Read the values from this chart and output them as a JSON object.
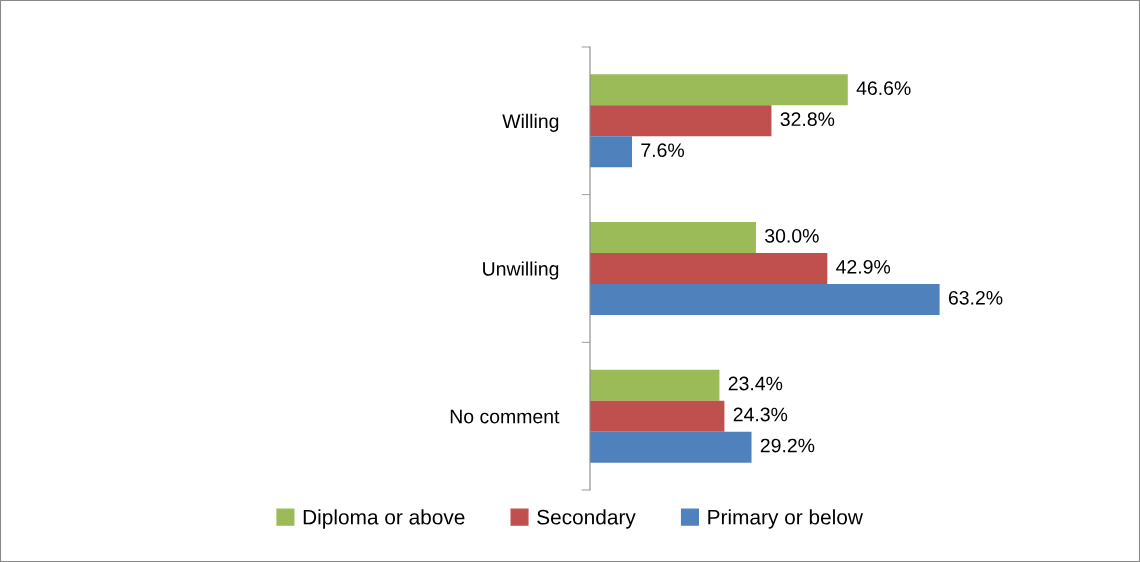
{
  "chart_data": {
    "type": "bar",
    "orientation": "horizontal",
    "categories": [
      "Willing",
      "Unwilling",
      "No comment"
    ],
    "series": [
      {
        "name": "Diploma or above",
        "color": "#9bbb59",
        "values": [
          46.6,
          30.0,
          23.4
        ],
        "value_labels": [
          "46.6%",
          "30.0%",
          "23.4%"
        ]
      },
      {
        "name": "Secondary",
        "color": "#c0504d",
        "values": [
          32.8,
          42.9,
          24.3
        ],
        "value_labels": [
          "32.8%",
          "42.9%",
          "24.3%"
        ]
      },
      {
        "name": "Primary or below",
        "color": "#4f81bd",
        "values": [
          7.6,
          63.2,
          29.2
        ],
        "value_labels": [
          "7.6%",
          "63.2%",
          "29.2%"
        ]
      }
    ],
    "legend": "bottom",
    "grid": false,
    "tick_labels": "y"
  }
}
